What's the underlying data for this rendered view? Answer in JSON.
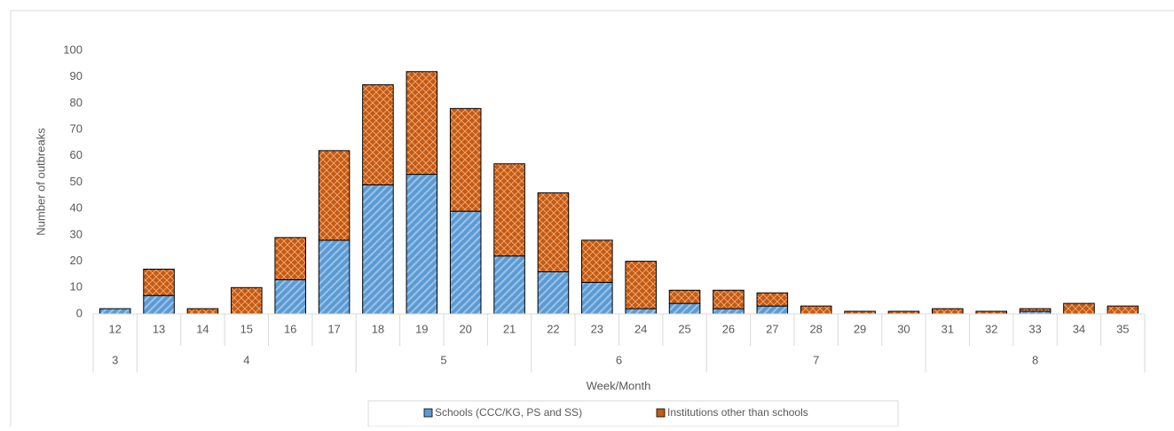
{
  "chart_data": {
    "type": "stacked_bar",
    "x_label": "Week/Month",
    "y_label": "Number of outbreaks",
    "categories": [
      12,
      13,
      14,
      15,
      16,
      17,
      18,
      19,
      20,
      21,
      22,
      23,
      24,
      25,
      26,
      27,
      28,
      29,
      30,
      31,
      32,
      33,
      34,
      35
    ],
    "months": [
      3,
      4,
      null,
      null,
      null,
      null,
      5,
      null,
      null,
      null,
      6,
      null,
      null,
      null,
      7,
      null,
      null,
      null,
      null,
      8,
      null,
      null,
      null,
      null
    ],
    "series": [
      {
        "name": "Schools (CCC/KG, PS and SS)",
        "color": "#5b9bd5",
        "values": [
          2,
          7,
          0,
          0,
          13,
          28,
          49,
          53,
          39,
          22,
          16,
          12,
          2,
          4,
          2,
          3,
          0,
          0,
          0,
          0,
          0,
          1,
          0,
          0
        ]
      },
      {
        "name": "Institutions other than schools",
        "color": "#c55a11",
        "values": [
          0,
          10,
          2,
          10,
          16,
          34,
          38,
          39,
          39,
          35,
          30,
          16,
          18,
          5,
          7,
          5,
          3,
          1,
          1,
          2,
          1,
          1,
          4,
          3
        ]
      }
    ],
    "ylim": [
      0,
      100
    ],
    "yticks": [
      0,
      10,
      20,
      30,
      40,
      50,
      60,
      70,
      80,
      90,
      100
    ],
    "grid": false,
    "legend": "bottom"
  }
}
